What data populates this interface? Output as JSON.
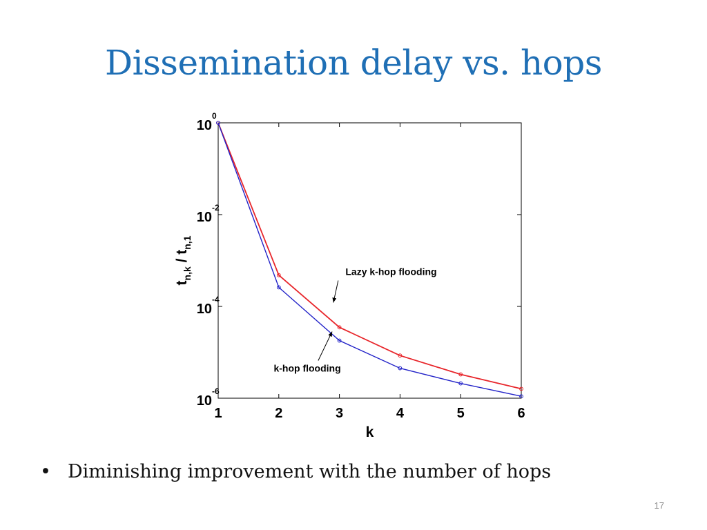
{
  "slide": {
    "title": "Dissemination delay vs. hops",
    "bullets": [
      "Diminishing improvement with the number of hops"
    ],
    "bullet_symbol": "•",
    "page_number": "17"
  },
  "chart_data": {
    "type": "line",
    "xlabel": "k",
    "ylabel": {
      "main1": "t",
      "sub1": "n,k",
      "sep": " / ",
      "main2": "t",
      "sub2": "n,1"
    },
    "x": [
      1,
      2,
      3,
      4,
      5,
      6
    ],
    "xlim": [
      1,
      6
    ],
    "ylim": [
      1e-06,
      1
    ],
    "yscale": "log",
    "ytick_exponents": [
      0,
      -2,
      -4,
      -6
    ],
    "ytick_base": "10",
    "grid": false,
    "series": [
      {
        "name": "Lazy k-hop flooding",
        "color": "#e8262b",
        "values": [
          1.0,
          0.00048,
          3.5e-05,
          8.5e-06,
          3.3e-06,
          1.6e-06
        ]
      },
      {
        "name": "k-hop flooding",
        "color": "#2323c8",
        "values": [
          1.0,
          0.00026,
          1.8e-05,
          4.5e-06,
          2.1e-06,
          1.1e-06
        ]
      }
    ],
    "annotations": [
      {
        "text": "Lazy k-hop flooding",
        "series": 0
      },
      {
        "text": "k-hop flooding",
        "series": 1
      }
    ]
  }
}
